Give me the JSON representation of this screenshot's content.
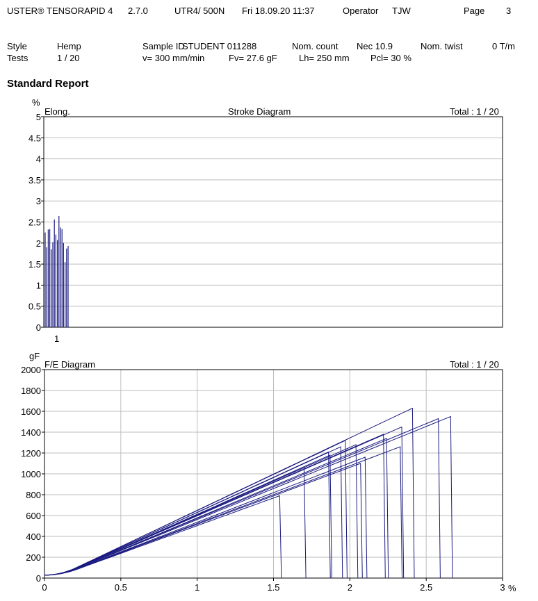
{
  "header": {
    "product": "USTER® TENSORAPID 4",
    "version": "2.7.0",
    "device": "UTR4/  500N",
    "datetime": "Fri 18.09.20 11:37",
    "operator_label": "Operator",
    "operator": "TJW",
    "page_label": "Page",
    "page": "3"
  },
  "info": {
    "style_label": "Style",
    "style": "Hemp",
    "tests_label": "Tests",
    "tests": "1 / 20",
    "sample_label": "Sample ID",
    "sample": "STUDENT   011288",
    "nom_count_label": "Nom. count",
    "nom_count": "Nec 10.9",
    "nom_twist_label": "Nom. twist",
    "nom_twist": "0 T/m",
    "speed": "v=  300 mm/min",
    "fv": "Fv=  27.6 gF",
    "lh": "Lh=  250 mm",
    "pcl": "Pcl=   30 %"
  },
  "report_title": "Standard Report",
  "chart_data": [
    {
      "type": "bar",
      "title": "Stroke Diagram",
      "total": "Total : 1 / 20",
      "ylabel": "Elong.",
      "yunit": "%",
      "ylim": [
        0,
        5
      ],
      "yticks": [
        "0",
        "0.5",
        "1",
        "1.5",
        "2",
        "2.5",
        "3",
        "3.5",
        "4",
        "4.5",
        "5"
      ],
      "xlabel_marker": "1",
      "grid": true,
      "values": [
        2.25,
        1.9,
        2.32,
        2.33,
        1.85,
        2.02,
        2.56,
        2.2,
        2.07,
        2.64,
        2.37,
        2.33,
        2.0,
        1.55,
        1.87,
        1.93
      ]
    },
    {
      "type": "line",
      "title": "F/E Diagram",
      "total": "Total : 1 / 20",
      "yunit": "gF",
      "xunit": "%",
      "xlim": [
        0,
        3
      ],
      "ylim": [
        0,
        2000
      ],
      "xticks": [
        "0",
        "0.5",
        "1",
        "1.5",
        "2",
        "2.5",
        "3"
      ],
      "yticks": [
        "0",
        "200",
        "400",
        "600",
        "800",
        "1000",
        "1200",
        "1400",
        "1600",
        "1800",
        "2000"
      ],
      "grid": true,
      "series": [
        {
          "break_elong": 1.54,
          "break_force": 790
        },
        {
          "break_elong": 1.7,
          "break_force": 1060
        },
        {
          "break_elong": 1.86,
          "break_force": 1210
        },
        {
          "break_elong": 1.87,
          "break_force": 1180
        },
        {
          "break_elong": 1.94,
          "break_force": 1260
        },
        {
          "break_elong": 1.97,
          "break_force": 1320
        },
        {
          "break_elong": 2.04,
          "break_force": 1280
        },
        {
          "break_elong": 2.07,
          "break_force": 1100
        },
        {
          "break_elong": 2.1,
          "break_force": 1160
        },
        {
          "break_elong": 2.22,
          "break_force": 1380
        },
        {
          "break_elong": 2.24,
          "break_force": 1340
        },
        {
          "break_elong": 2.33,
          "break_force": 1260
        },
        {
          "break_elong": 2.34,
          "break_force": 1450
        },
        {
          "break_elong": 2.41,
          "break_force": 1630
        },
        {
          "break_elong": 2.58,
          "break_force": 1530
        },
        {
          "break_elong": 2.66,
          "break_force": 1550
        }
      ]
    }
  ]
}
